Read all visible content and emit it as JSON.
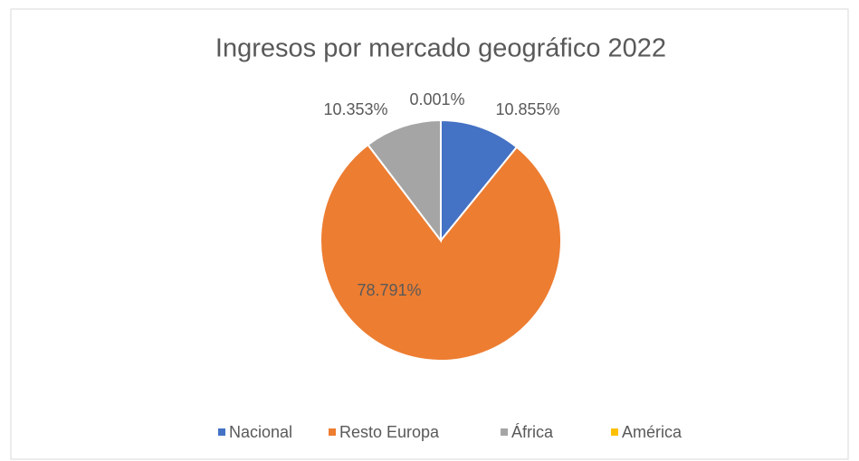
{
  "chart_data": {
    "type": "pie",
    "title": "Ingresos por mercado geográfico 2022",
    "categories": [
      "Nacional",
      "Resto Europa",
      "África",
      "América"
    ],
    "values": [
      10.855,
      78.791,
      10.353,
      0.001
    ],
    "value_labels": [
      "10.855%",
      "78.791%",
      "10.353%",
      "0.001%"
    ],
    "colors": [
      "#4472c4",
      "#ed7d31",
      "#a5a5a5",
      "#ffc000"
    ],
    "legend": "bottom"
  }
}
